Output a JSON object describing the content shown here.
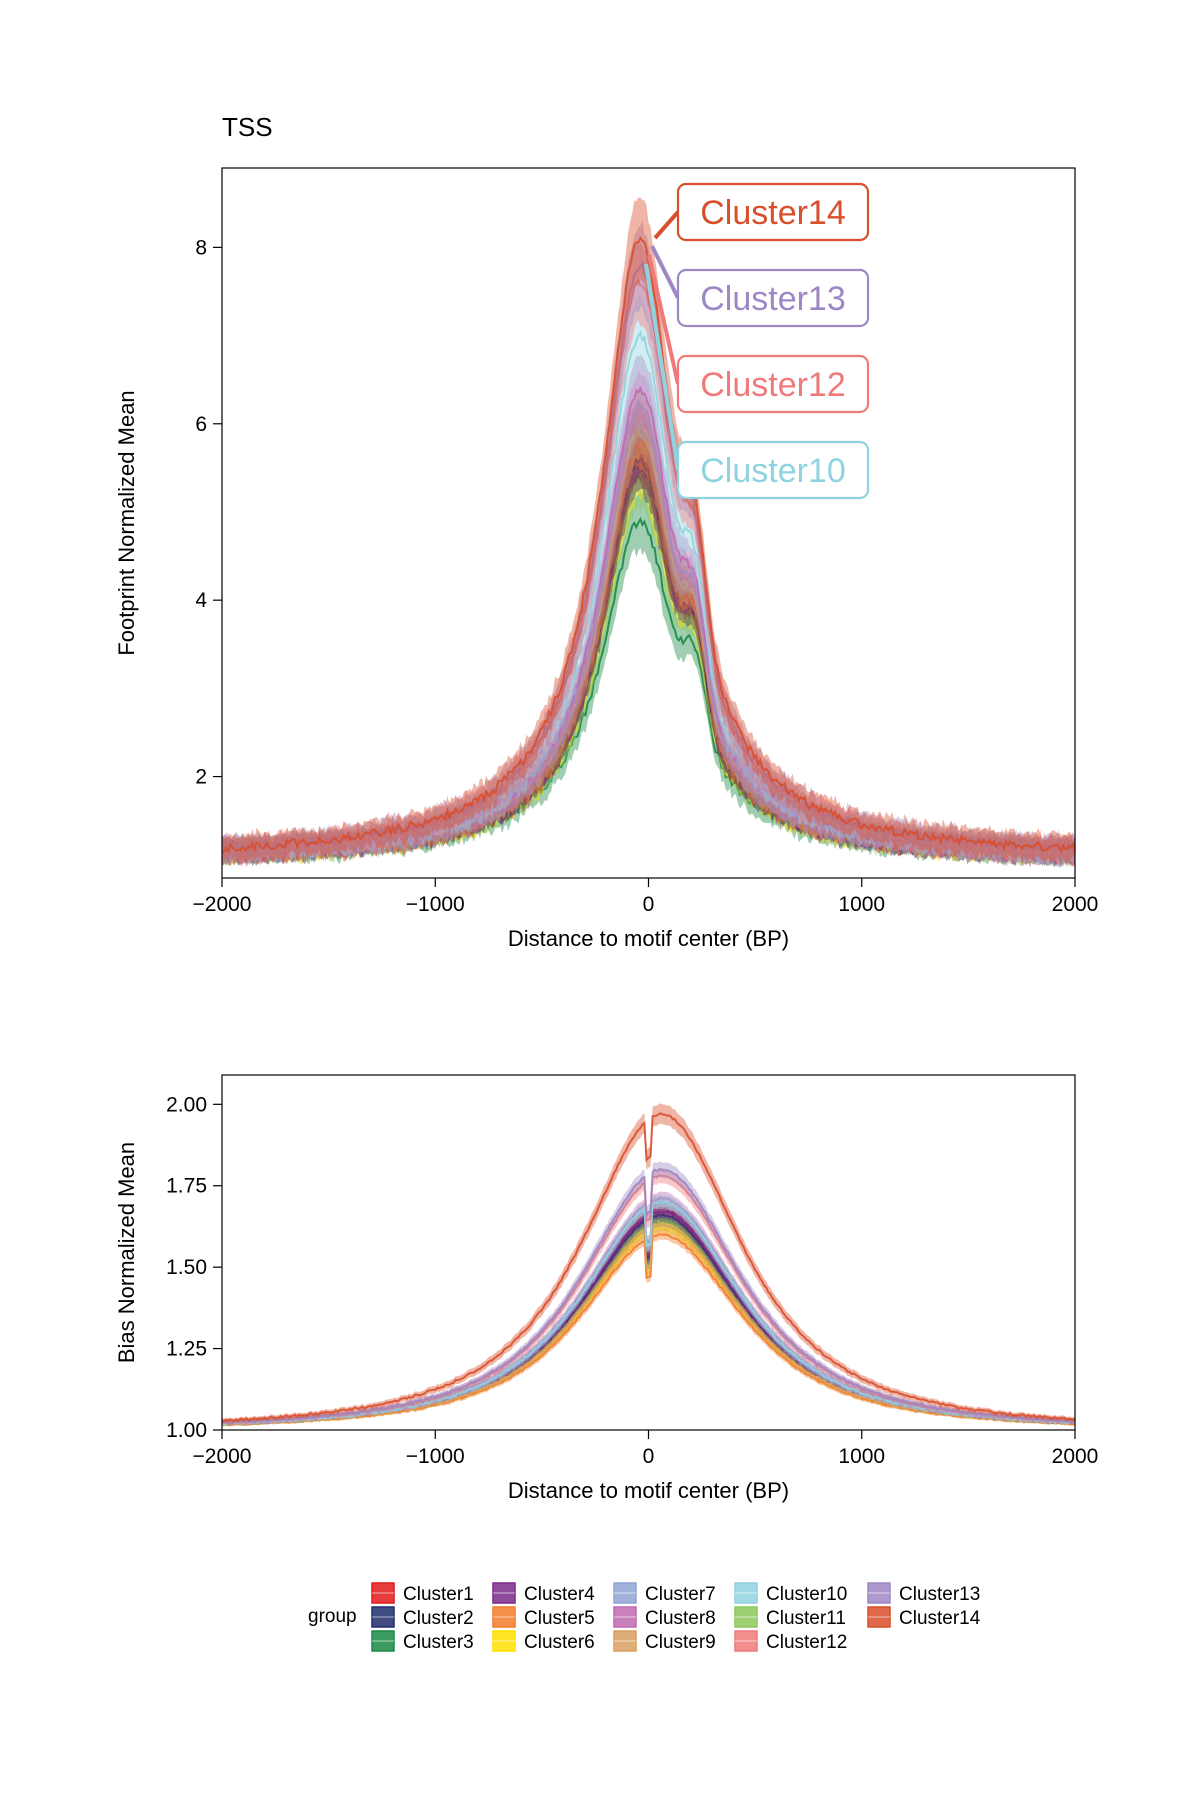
{
  "title": "TSS",
  "groups": {
    "legend_title": "group",
    "names": [
      "Cluster1",
      "Cluster2",
      "Cluster3",
      "Cluster4",
      "Cluster5",
      "Cluster6",
      "Cluster7",
      "Cluster8",
      "Cluster9",
      "Cluster10",
      "Cluster11",
      "Cluster12",
      "Cluster13",
      "Cluster14"
    ],
    "colors": [
      "#e31a1c",
      "#1f2e6b",
      "#1a8a45",
      "#7b2a8a",
      "#f47b2a",
      "#ffe100",
      "#8fa3d4",
      "#c06ab0",
      "#d9a060",
      "#8fd3e0",
      "#8cc85a",
      "#f07a7a",
      "#9d87c4",
      "#d94e2b"
    ]
  },
  "chart_data": [
    {
      "type": "area",
      "title": "TSS",
      "xlabel": "Distance to motif center (BP)",
      "ylabel": "Footprint Normalized Mean",
      "xlim": [
        -2000,
        2000
      ],
      "ylim": [
        0.85,
        8.9
      ],
      "xticks": [
        -2000,
        -1000,
        0,
        1000,
        2000
      ],
      "xtick_labels": [
        "−2000",
        "−1000",
        "0",
        "1000",
        "2000"
      ],
      "yticks": [
        2,
        4,
        6,
        8
      ],
      "ytick_labels": [
        "2",
        "4",
        "6",
        "8"
      ],
      "grid": false,
      "peak_values": {
        "Cluster1": 5.7,
        "Cluster2": 5.6,
        "Cluster3": 4.9,
        "Cluster4": 5.8,
        "Cluster5": 5.9,
        "Cluster6": 5.5,
        "Cluster7": 6.2,
        "Cluster8": 6.4,
        "Cluster9": 6.0,
        "Cluster10": 7.0,
        "Cluster11": 5.4,
        "Cluster12": 7.6,
        "Cluster13": 7.8,
        "Cluster14": 8.1
      },
      "baseline_value": 1.05,
      "secondary_peak": {
        "x": 220,
        "value": 3.6
      },
      "callouts": [
        {
          "label": "Cluster14",
          "color": "#d94e2b"
        },
        {
          "label": "Cluster13",
          "color": "#9d87c4"
        },
        {
          "label": "Cluster12",
          "color": "#f07a7a"
        },
        {
          "label": "Cluster10",
          "color": "#8fd3e0"
        }
      ]
    },
    {
      "type": "area",
      "title": "",
      "xlabel": "Distance to motif center (BP)",
      "ylabel": "Bias Normalized Mean",
      "xlim": [
        -2000,
        2000
      ],
      "ylim": [
        1.0,
        2.09
      ],
      "xticks": [
        -2000,
        -1000,
        0,
        1000,
        2000
      ],
      "xtick_labels": [
        "−2000",
        "−1000",
        "0",
        "1000",
        "2000"
      ],
      "yticks": [
        1.0,
        1.25,
        1.5,
        1.75,
        2.0
      ],
      "ytick_labels": [
        "1.00",
        "1.25",
        "1.50",
        "1.75",
        "2.00"
      ],
      "grid": false,
      "peak_values": {
        "Cluster1": 1.68,
        "Cluster2": 1.66,
        "Cluster3": 1.64,
        "Cluster4": 1.67,
        "Cluster5": 1.6,
        "Cluster6": 1.62,
        "Cluster7": 1.7,
        "Cluster8": 1.71,
        "Cluster9": 1.63,
        "Cluster10": 1.7,
        "Cluster11": 1.65,
        "Cluster12": 1.78,
        "Cluster13": 1.8,
        "Cluster14": 1.97
      },
      "baseline_value": 1.0
    }
  ]
}
